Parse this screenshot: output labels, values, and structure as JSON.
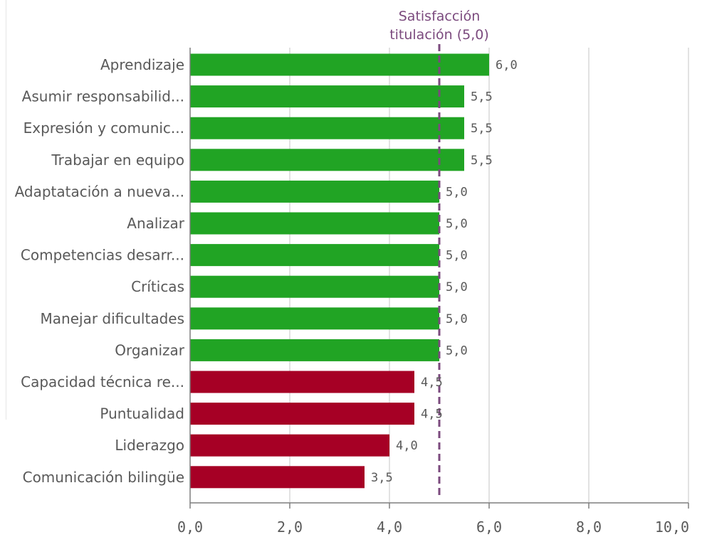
{
  "chart_data": {
    "type": "bar",
    "orientation": "horizontal",
    "categories": [
      "Aprendizaje",
      "Asumir responsabilid...",
      "Expresión y comunic...",
      "Trabajar en equipo",
      "Adaptatación a nueva...",
      "Analizar",
      "Competencias desarr...",
      "Críticas",
      "Manejar dificultades",
      "Organizar",
      "Capacidad técnica re...",
      "Puntualidad",
      "Liderazgo",
      "Comunicación bilingüe"
    ],
    "values": [
      6.0,
      5.5,
      5.5,
      5.5,
      5.0,
      5.0,
      5.0,
      5.0,
      5.0,
      5.0,
      4.5,
      4.5,
      4.0,
      3.5
    ],
    "value_labels": [
      "6,0",
      "5,5",
      "5,5",
      "5,5",
      "5,0",
      "5,0",
      "5,0",
      "5,0",
      "5,0",
      "5,0",
      "4,5",
      "4,5",
      "4,0",
      "3,5"
    ],
    "xlim": [
      0,
      10
    ],
    "x_ticks": [
      0,
      2,
      4,
      6,
      8,
      10
    ],
    "x_tick_labels": [
      "0,0",
      "2,0",
      "4,0",
      "6,0",
      "8,0",
      "10,0"
    ],
    "grid": true,
    "reference_line": {
      "value": 5.0,
      "label_line1": "Satisfacción",
      "label_line2": "titulación (5,0)",
      "color": "#7b4a7e",
      "style": "dashed"
    },
    "colors": {
      "above_or_equal": "#21a424",
      "below": "#a60025",
      "grid": "#d9d9d9",
      "text": "#595959"
    },
    "title": "",
    "xlabel": "",
    "ylabel": ""
  }
}
